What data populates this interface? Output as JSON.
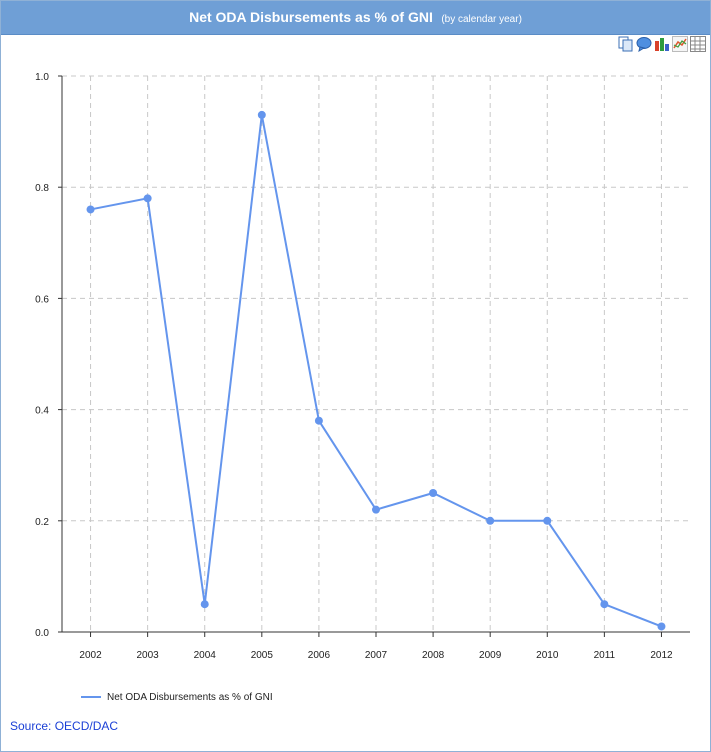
{
  "header": {
    "title": "Net ODA Disbursements as % of GNI",
    "subtitle": "(by calendar year)"
  },
  "toolbar": {
    "icons": [
      "copy-icon",
      "comment-icon",
      "bar-chart-icon",
      "line-chart-icon",
      "table-icon"
    ]
  },
  "colors": {
    "accent": "#6f9fd6",
    "series": "#6495ed",
    "grid": "#c8c8c8",
    "source_link": "#1a3fd6"
  },
  "chart_data": {
    "type": "line",
    "categories": [
      "2002",
      "2003",
      "2004",
      "2005",
      "2006",
      "2007",
      "2008",
      "2009",
      "2010",
      "2011",
      "2012"
    ],
    "series": [
      {
        "name": "Net ODA Disbursements as % of GNI",
        "values": [
          0.76,
          0.78,
          0.05,
          0.93,
          0.38,
          0.22,
          0.25,
          0.2,
          0.2,
          0.05,
          0.01
        ]
      }
    ],
    "ylim": [
      0,
      1.0
    ],
    "yticks": [
      "0.0",
      "0.2",
      "0.4",
      "0.6",
      "0.8",
      "1.0"
    ],
    "grid": true,
    "legend_position": "bottom-left"
  },
  "footer": {
    "source": "Source: OECD/DAC"
  }
}
